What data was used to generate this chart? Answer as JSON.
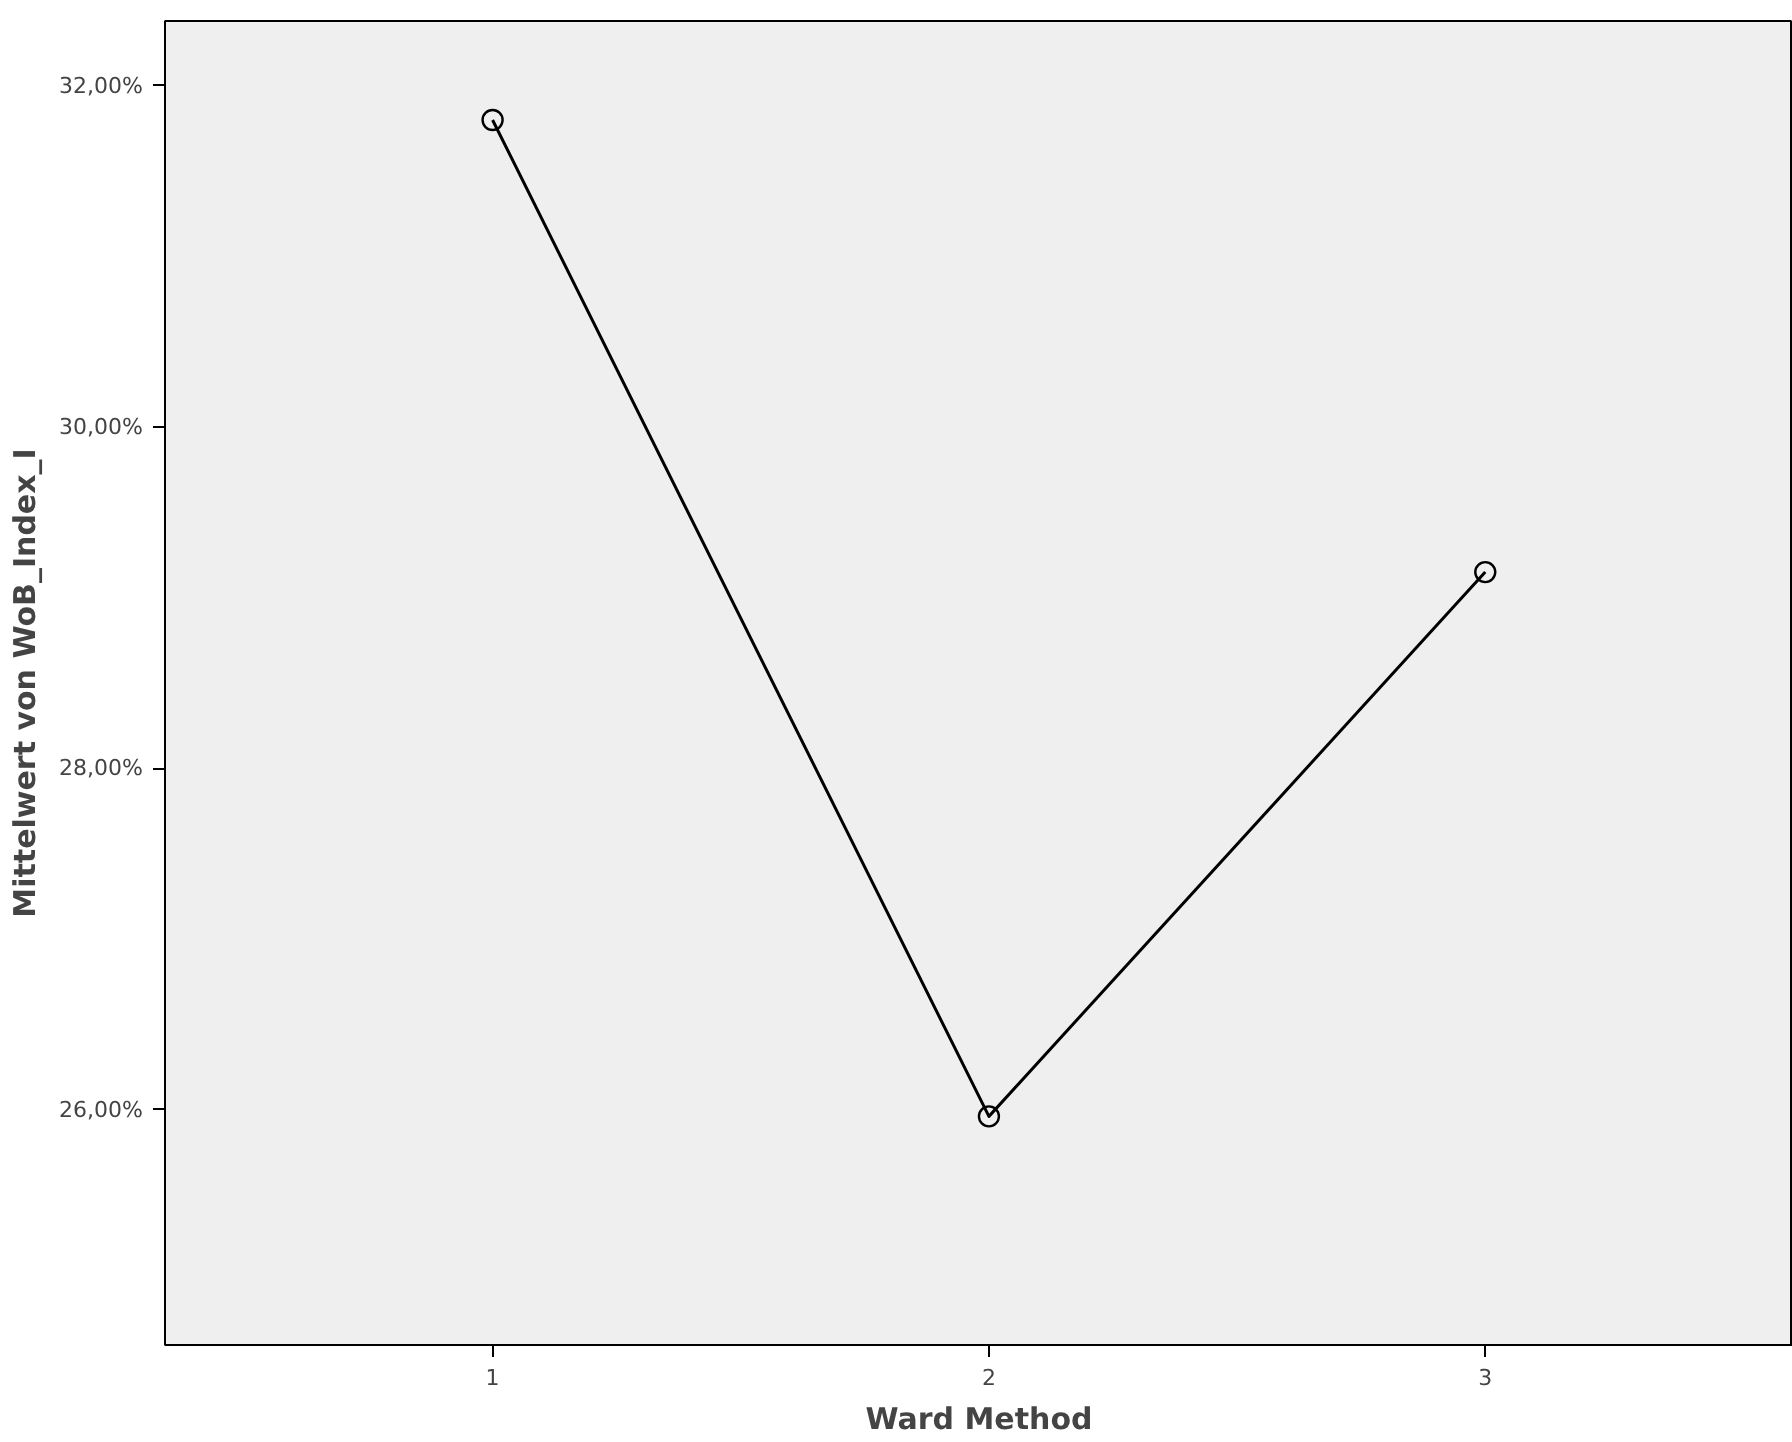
{
  "chart_data": {
    "type": "line",
    "xlabel": "Ward Method",
    "ylabel": "Mittelwert von WoB_Index_I",
    "categories": [
      "1",
      "2",
      "3"
    ],
    "series": [
      {
        "color": "#000000",
        "values": [
          31.8,
          25.96,
          29.15
        ]
      }
    ],
    "ylim": [
      24.62,
      32.38
    ],
    "yticks": [
      {
        "value": 26,
        "label": "26,00%"
      },
      {
        "value": 28,
        "label": "28,00%"
      },
      {
        "value": 30,
        "label": "30,00%"
      },
      {
        "value": 32,
        "label": "32,00%"
      }
    ],
    "marker": "circle",
    "line_style": "solid",
    "grid": false
  }
}
